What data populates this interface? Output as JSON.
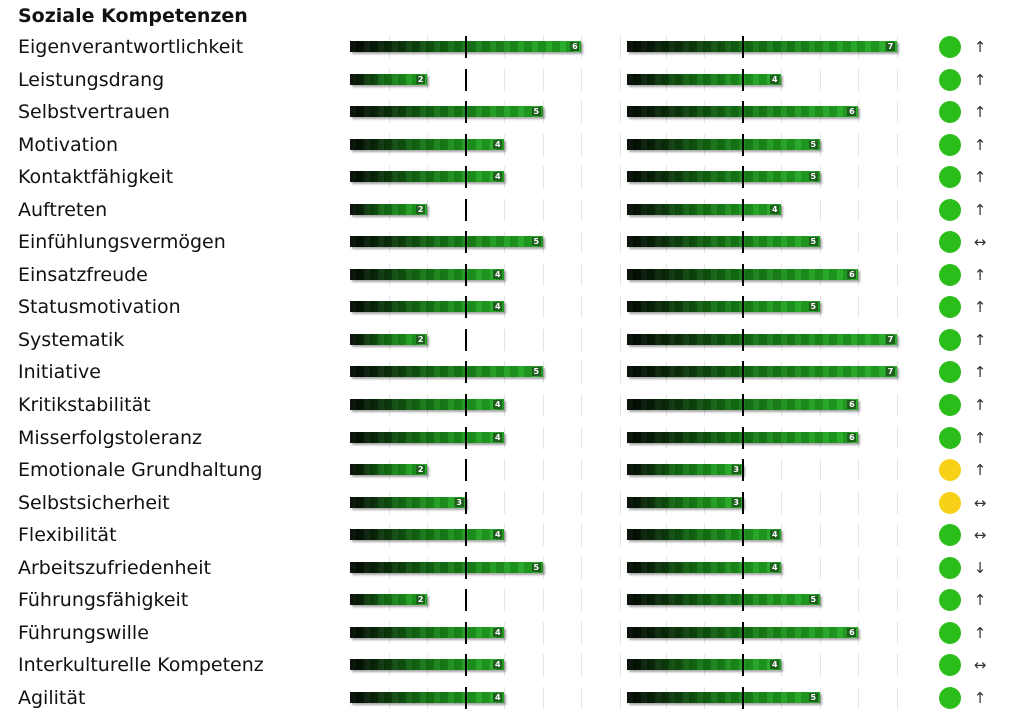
{
  "section_title": "Soziale Kompetenzen",
  "colors": {
    "green": "#2bbd1a",
    "yellow": "#f7d117"
  },
  "arrow_glyphs": {
    "up": "↑",
    "down": "↓",
    "both": "↔"
  },
  "chart_data": {
    "type": "bar",
    "orientation": "horizontal",
    "scale_max": 7,
    "reference_value": 3,
    "grid": true,
    "title": "Soziale Kompetenzen",
    "categories": [
      "Eigenverantwortlichkeit",
      "Leistungsdrang",
      "Selbstvertrauen",
      "Motivation",
      "Kontaktfähigkeit",
      "Auftreten",
      "Einfühlungsvermögen",
      "Einsatzfreude",
      "Statusmotivation",
      "Systematik",
      "Initiative",
      "Kritikstabilität",
      "Misserfolgstoleranz",
      "Emotionale Grundhaltung",
      "Selbstsicherheit",
      "Flexibilität",
      "Arbeitszufriedenheit",
      "Führungsfähigkeit",
      "Führungswille",
      "Interkulturelle Kompetenz",
      "Agilität"
    ],
    "series": [
      {
        "values": [
          6,
          2,
          5,
          4,
          4,
          2,
          5,
          4,
          4,
          2,
          5,
          4,
          4,
          2,
          3,
          4,
          5,
          2,
          4,
          4,
          4
        ]
      },
      {
        "values": [
          7,
          4,
          6,
          5,
          5,
          4,
          5,
          6,
          5,
          7,
          7,
          6,
          6,
          3,
          3,
          4,
          4,
          5,
          6,
          4,
          5
        ]
      }
    ],
    "status": [
      "green",
      "green",
      "green",
      "green",
      "green",
      "green",
      "green",
      "green",
      "green",
      "green",
      "green",
      "green",
      "green",
      "yellow",
      "yellow",
      "green",
      "green",
      "green",
      "green",
      "green",
      "green"
    ],
    "trend": [
      "up",
      "up",
      "up",
      "up",
      "up",
      "up",
      "both",
      "up",
      "up",
      "up",
      "up",
      "up",
      "up",
      "up",
      "both",
      "both",
      "down",
      "up",
      "up",
      "both",
      "up"
    ]
  }
}
